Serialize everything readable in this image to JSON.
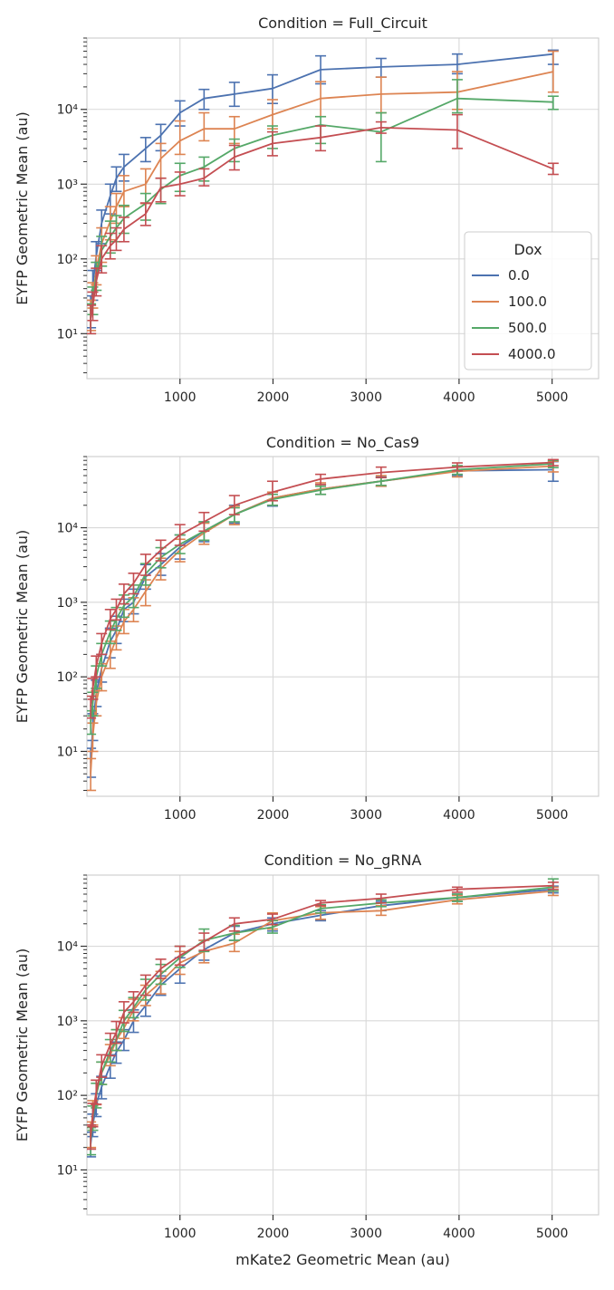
{
  "chart_data": [
    {
      "type": "line",
      "title": "Condition = Full_Circuit",
      "xlabel": "",
      "ylabel": "EYFP Geometric Mean (au)",
      "xscale": "linear",
      "yscale": "log",
      "xlim": [
        0,
        5500
      ],
      "ylim": [
        2.5,
        90000
      ],
      "xticks": [
        1000,
        2000,
        3000,
        4000,
        5000
      ],
      "xtick_labels": [
        "1000",
        "2000",
        "3000",
        "4000",
        "5000"
      ],
      "yticks": [
        10,
        100,
        1000,
        10000
      ],
      "ytick_labels": [
        "10¹",
        "10²",
        "10³",
        "10⁴"
      ],
      "grid": true,
      "legend": {
        "title": "Dox",
        "placement": "lower-right",
        "entries": [
          "0.0",
          "100.0",
          "500.0",
          "4000.0"
        ]
      },
      "series": [
        {
          "name": "0.0",
          "color": "#4c72b0",
          "x": [
            40,
            63,
            100,
            158,
            251,
            316,
            398,
            631,
            794,
            1000,
            1259,
            1585,
            1995,
            2512,
            3162,
            3981,
            5012
          ],
          "y": [
            20,
            45,
            110,
            300,
            700,
            1200,
            1700,
            3000,
            4500,
            9000,
            14000,
            16000,
            19000,
            34000,
            37000,
            40000,
            55000
          ],
          "lo": [
            12,
            28,
            70,
            160,
            400,
            800,
            1100,
            2000,
            2800,
            6000,
            10000,
            11000,
            12000,
            22000,
            27000,
            30000,
            40000
          ],
          "hi": [
            32,
            70,
            170,
            450,
            1000,
            1700,
            2500,
            4200,
            6300,
            13000,
            18500,
            23000,
            29000,
            52000,
            48000,
            55000,
            62000
          ]
        },
        {
          "name": "100.0",
          "color": "#dd8452",
          "x": [
            40,
            63,
            100,
            158,
            251,
            316,
            398,
            631,
            794,
            1000,
            1259,
            1585,
            1995,
            2512,
            3162,
            3981,
            5012
          ],
          "y": [
            18,
            32,
            70,
            160,
            320,
            500,
            800,
            1000,
            2200,
            3800,
            5500,
            5500,
            8500,
            14000,
            16000,
            17000,
            32000
          ],
          "lo": [
            11,
            22,
            45,
            90,
            180,
            300,
            500,
            550,
            1200,
            2500,
            3800,
            3500,
            5500,
            8000,
            9000,
            10000,
            17000
          ],
          "hi": [
            28,
            48,
            110,
            260,
            500,
            750,
            1300,
            1600,
            3500,
            7000,
            9000,
            8000,
            13500,
            23500,
            27000,
            32000,
            60000
          ]
        },
        {
          "name": "500.0",
          "color": "#55a868",
          "x": [
            40,
            63,
            100,
            158,
            251,
            316,
            398,
            631,
            794,
            1000,
            1259,
            1585,
            1995,
            2512,
            3162,
            3981,
            5012
          ],
          "y": [
            16,
            28,
            60,
            130,
            200,
            260,
            350,
            550,
            850,
            1300,
            1700,
            3000,
            4500,
            6200,
            5000,
            14000,
            12500
          ],
          "lo": [
            10,
            18,
            38,
            80,
            120,
            170,
            220,
            330,
            550,
            800,
            1100,
            2000,
            3000,
            3500,
            2000,
            9000,
            10000
          ],
          "hi": [
            25,
            42,
            90,
            200,
            320,
            380,
            520,
            750,
            1200,
            1900,
            2300,
            4000,
            6000,
            8000,
            9000,
            25000,
            15000
          ]
        },
        {
          "name": "4000.0",
          "color": "#c44e52",
          "x": [
            40,
            63,
            100,
            158,
            251,
            316,
            398,
            631,
            794,
            1000,
            1259,
            1585,
            1995,
            2512,
            3162,
            3981,
            5012
          ],
          "y": [
            16,
            24,
            50,
            100,
            150,
            180,
            250,
            400,
            900,
            1000,
            1200,
            2300,
            3500,
            4200,
            5700,
            5300,
            1600
          ],
          "lo": [
            10,
            15,
            32,
            65,
            100,
            130,
            170,
            280,
            580,
            700,
            950,
            1550,
            2400,
            2800,
            4800,
            3000,
            1350
          ],
          "hi": [
            24,
            36,
            75,
            150,
            220,
            260,
            360,
            560,
            1200,
            1450,
            1600,
            3300,
            5000,
            6000,
            6800,
            8500,
            1900
          ]
        }
      ]
    },
    {
      "type": "line",
      "title": "Condition = No_Cas9",
      "xlabel": "",
      "ylabel": "EYFP Geometric Mean (au)",
      "xscale": "linear",
      "yscale": "log",
      "xlim": [
        0,
        5500
      ],
      "ylim": [
        2.5,
        90000
      ],
      "xticks": [
        1000,
        2000,
        3000,
        4000,
        5000
      ],
      "xtick_labels": [
        "1000",
        "2000",
        "3000",
        "4000",
        "5000"
      ],
      "yticks": [
        10,
        100,
        1000,
        10000
      ],
      "ytick_labels": [
        "10¹",
        "10²",
        "10³",
        "10⁴"
      ],
      "grid": true,
      "series": [
        {
          "name": "0.0",
          "color": "#4c72b0",
          "x": [
            40,
            63,
            100,
            158,
            251,
            316,
            398,
            501,
            631,
            794,
            1000,
            1259,
            1585,
            1995,
            2512,
            3162,
            3981,
            5012
          ],
          "y": [
            7,
            22,
            60,
            130,
            300,
            420,
            800,
            1000,
            2200,
            3200,
            5500,
            9000,
            15000,
            25000,
            33000,
            42000,
            58000,
            60000
          ],
          "lo": [
            4.5,
            14,
            40,
            85,
            180,
            280,
            550,
            700,
            1500,
            2300,
            3800,
            6500,
            11500,
            19500,
            28000,
            36000,
            50000,
            42000
          ],
          "hi": [
            11,
            32,
            90,
            200,
            450,
            650,
            1100,
            1500,
            3200,
            4500,
            8000,
            12000,
            20000,
            30000,
            38000,
            48000,
            66000,
            77000
          ]
        },
        {
          "name": "100.0",
          "color": "#dd8452",
          "x": [
            40,
            63,
            100,
            158,
            251,
            316,
            398,
            501,
            631,
            794,
            1000,
            1259,
            1585,
            1995,
            2512,
            3162,
            3981,
            5012
          ],
          "y": [
            5,
            16,
            45,
            100,
            200,
            330,
            550,
            800,
            1400,
            2800,
            5000,
            8500,
            15000,
            25000,
            33000,
            42000,
            57000,
            67000
          ],
          "lo": [
            3,
            10,
            30,
            65,
            130,
            230,
            380,
            550,
            900,
            2000,
            3500,
            6000,
            11000,
            20000,
            28000,
            36000,
            48000,
            56000
          ],
          "hi": [
            8,
            24,
            65,
            150,
            300,
            480,
            800,
            1150,
            2000,
            3900,
            7000,
            11500,
            19500,
            30000,
            40000,
            50000,
            66000,
            78000
          ]
        },
        {
          "name": "500.0",
          "color": "#55a868",
          "x": [
            40,
            63,
            100,
            158,
            251,
            316,
            398,
            501,
            631,
            794,
            1000,
            1259,
            1585,
            1995,
            2512,
            3162,
            3981,
            5012
          ],
          "y": [
            25,
            45,
            100,
            200,
            400,
            600,
            900,
            1200,
            2400,
            4000,
            6000,
            9000,
            15000,
            24000,
            32000,
            42000,
            60000,
            72000
          ],
          "lo": [
            17,
            30,
            70,
            140,
            280,
            420,
            630,
            850,
            1700,
            2900,
            4500,
            6800,
            12000,
            20000,
            28000,
            37000,
            52000,
            64000
          ],
          "hi": [
            35,
            62,
            140,
            280,
            560,
            850,
            1250,
            1700,
            3300,
            5400,
            8000,
            12000,
            18500,
            28000,
            36000,
            47000,
            68000,
            80000
          ]
        },
        {
          "name": "4000.0",
          "color": "#c44e52",
          "x": [
            40,
            63,
            100,
            158,
            251,
            316,
            398,
            501,
            631,
            794,
            1000,
            1259,
            1585,
            1995,
            2512,
            3162,
            3981,
            5012
          ],
          "y": [
            40,
            70,
            140,
            280,
            600,
            800,
            1300,
            1800,
            3200,
            5000,
            8000,
            12000,
            20000,
            30000,
            45000,
            55000,
            65000,
            75000
          ],
          "lo": [
            28,
            50,
            100,
            200,
            430,
            580,
            950,
            1300,
            2300,
            3600,
            5800,
            9000,
            15000,
            23000,
            38000,
            47000,
            58000,
            68000
          ],
          "hi": [
            55,
            95,
            190,
            380,
            800,
            1100,
            1750,
            2450,
            4400,
            6800,
            11000,
            16000,
            27000,
            42000,
            52000,
            65000,
            74000,
            82000
          ]
        }
      ]
    },
    {
      "type": "line",
      "title": "Condition = No_gRNA",
      "xlabel": "mKate2 Geometric Mean (au)",
      "ylabel": "EYFP Geometric Mean (au)",
      "xscale": "linear",
      "yscale": "log",
      "xlim": [
        0,
        5500
      ],
      "ylim": [
        2.5,
        90000
      ],
      "xticks": [
        1000,
        2000,
        3000,
        4000,
        5000
      ],
      "xtick_labels": [
        "1000",
        "2000",
        "3000",
        "4000",
        "5000"
      ],
      "yticks": [
        10,
        100,
        1000,
        10000
      ],
      "ytick_labels": [
        "10¹",
        "10²",
        "10³",
        "10⁴"
      ],
      "grid": true,
      "series": [
        {
          "name": "0.0",
          "color": "#4c72b0",
          "x": [
            40,
            63,
            100,
            158,
            251,
            316,
            398,
            501,
            631,
            794,
            1000,
            1259,
            1585,
            1995,
            2512,
            3162,
            3981,
            5012
          ],
          "y": [
            22,
            40,
            75,
            130,
            250,
            380,
            550,
            1000,
            1600,
            3000,
            5000,
            9000,
            15000,
            20000,
            26000,
            35000,
            45000,
            58000
          ],
          "lo": [
            15,
            28,
            52,
            90,
            170,
            270,
            400,
            700,
            1150,
            2200,
            3200,
            6500,
            12000,
            16000,
            22000,
            30000,
            40000,
            52000
          ],
          "hi": [
            32,
            56,
            105,
            180,
            350,
            520,
            760,
            1400,
            2200,
            4000,
            7000,
            12000,
            18500,
            24000,
            30000,
            40000,
            50000,
            64000
          ]
        },
        {
          "name": "100.0",
          "color": "#dd8452",
          "x": [
            40,
            63,
            100,
            158,
            251,
            316,
            398,
            501,
            631,
            794,
            1000,
            1259,
            1585,
            1995,
            2512,
            3162,
            3981,
            5012
          ],
          "y": [
            30,
            60,
            110,
            200,
            350,
            550,
            800,
            1400,
            2200,
            3300,
            6000,
            8500,
            11000,
            22000,
            28000,
            30000,
            42000,
            55000
          ],
          "lo": [
            20,
            40,
            75,
            140,
            250,
            400,
            580,
            1000,
            1600,
            2300,
            4200,
            6000,
            8500,
            17000,
            23000,
            26000,
            37000,
            48000
          ],
          "hi": [
            44,
            85,
            160,
            280,
            480,
            760,
            1100,
            1950,
            3000,
            4600,
            8500,
            12000,
            14500,
            28000,
            34000,
            35000,
            48000,
            62000
          ]
        },
        {
          "name": "500.0",
          "color": "#55a868",
          "x": [
            40,
            63,
            100,
            158,
            251,
            316,
            398,
            501,
            631,
            794,
            1000,
            1259,
            1585,
            1995,
            2512,
            3162,
            3981,
            5012
          ],
          "y": [
            25,
            50,
            100,
            200,
            400,
            550,
            1000,
            1500,
            2600,
            4200,
            7000,
            12000,
            15000,
            18000,
            32000,
            38000,
            45000,
            62000
          ],
          "lo": [
            16,
            34,
            68,
            140,
            280,
            400,
            720,
            1100,
            1900,
            3100,
            5200,
            8500,
            12000,
            15000,
            28000,
            34000,
            40000,
            55000
          ],
          "hi": [
            37,
            72,
            145,
            280,
            560,
            760,
            1380,
            2050,
            3600,
            5700,
            10000,
            17000,
            19000,
            22000,
            36000,
            42000,
            50000,
            80000
          ]
        },
        {
          "name": "4000.0",
          "color": "#c44e52",
          "x": [
            40,
            63,
            100,
            158,
            251,
            316,
            398,
            501,
            631,
            794,
            1000,
            1259,
            1585,
            1995,
            2512,
            3162,
            3981,
            5012
          ],
          "y": [
            28,
            55,
            110,
            250,
            480,
            700,
            1300,
            1800,
            3000,
            5000,
            7500,
            11500,
            20000,
            23000,
            38000,
            44000,
            58000,
            65000
          ],
          "lo": [
            19,
            38,
            76,
            175,
            340,
            500,
            940,
            1300,
            2200,
            3700,
            5600,
            8800,
            16000,
            19500,
            35000,
            38000,
            53000,
            58000
          ],
          "hi": [
            40,
            78,
            160,
            350,
            680,
            980,
            1800,
            2450,
            4100,
            6700,
            10000,
            15000,
            24000,
            27000,
            41000,
            50000,
            62000,
            72000
          ]
        }
      ]
    }
  ]
}
